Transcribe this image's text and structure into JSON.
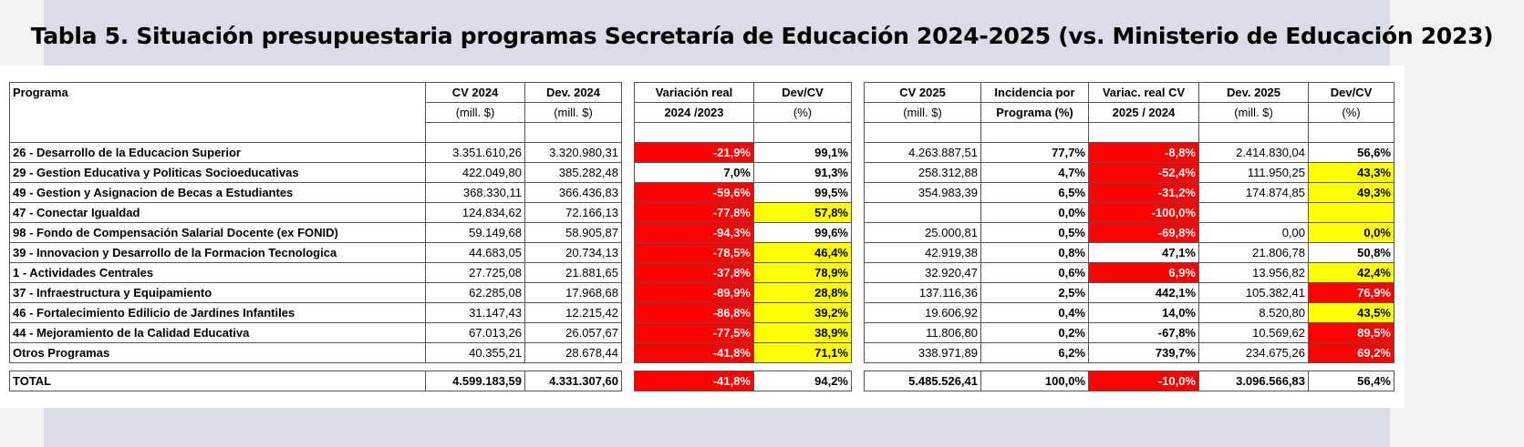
{
  "title": "Tabla 5. Situación presupuestaria programas Secretaría de Educación 2024-2025 (vs. Ministerio de Educación 2023)",
  "headers": {
    "programa": "Programa",
    "cv2024": [
      "CV 2024",
      "(mill. $)"
    ],
    "dev2024": [
      "Dev. 2024",
      "(mill. $)"
    ],
    "var2024": [
      "Variación real",
      "2024 /2023"
    ],
    "devcv2024": [
      "Dev/CV",
      "(%)"
    ],
    "cv2025": [
      "CV 2025",
      "(mill. $)"
    ],
    "incidencia": [
      "Incidencia por",
      "Programa (%)"
    ],
    "var2025": [
      "Variac. real CV",
      "2025 / 2024"
    ],
    "dev2025": [
      "Dev. 2025",
      "(mill. $)"
    ],
    "devcv2025": [
      "Dev/CV",
      "(%)"
    ]
  },
  "colors": {
    "red": "#ff0000",
    "yellow": "#ffff00"
  },
  "rows": [
    {
      "programa": "26 - Desarrollo de la Educacion Superior",
      "cv2024": "3.351.610,26",
      "dev2024": "3.320.980,31",
      "var2024": "-21,9%",
      "var2024_c": "r",
      "devcv2024": "99,1%",
      "devcv2024_c": "",
      "cv2025": "4.263.887,51",
      "incidencia": "77,7%",
      "var2025": "-8,8%",
      "var2025_c": "r",
      "dev2025": "2.414.830,04",
      "devcv2025": "56,6%",
      "devcv2025_c": ""
    },
    {
      "programa": "29 - Gestion Educativa y Politicas Socioeducativas",
      "cv2024": "422.049,80",
      "dev2024": "385.282,48",
      "var2024": "7,0%",
      "var2024_c": "",
      "devcv2024": "91,3%",
      "devcv2024_c": "",
      "cv2025": "258.312,88",
      "incidencia": "4,7%",
      "var2025": "-52,4%",
      "var2025_c": "r",
      "dev2025": "111.950,25",
      "devcv2025": "43,3%",
      "devcv2025_c": "y"
    },
    {
      "programa": "49 - Gestion y Asignacion de Becas a Estudiantes",
      "cv2024": "368.330,11",
      "dev2024": "366.436,83",
      "var2024": "-59,6%",
      "var2024_c": "r",
      "devcv2024": "99,5%",
      "devcv2024_c": "",
      "cv2025": "354.983,39",
      "incidencia": "6,5%",
      "var2025": "-31,2%",
      "var2025_c": "r",
      "dev2025": "174.874,85",
      "devcv2025": "49,3%",
      "devcv2025_c": "y"
    },
    {
      "programa": "47 - Conectar Igualdad",
      "cv2024": "124.834,62",
      "dev2024": "72.166,13",
      "var2024": "-77,8%",
      "var2024_c": "r",
      "devcv2024": "57,8%",
      "devcv2024_c": "y",
      "cv2025": "",
      "incidencia": "0,0%",
      "var2025": "-100,0%",
      "var2025_c": "r",
      "dev2025": "",
      "devcv2025": "",
      "devcv2025_c": "y"
    },
    {
      "programa": "98 - Fondo de Compensación Salarial Docente (ex FONID)",
      "cv2024": "59.149,68",
      "dev2024": "58.905,87",
      "var2024": "-94,3%",
      "var2024_c": "r",
      "devcv2024": "99,6%",
      "devcv2024_c": "",
      "cv2025": "25.000,81",
      "incidencia": "0,5%",
      "var2025": "-69,8%",
      "var2025_c": "r",
      "dev2025": "0,00",
      "devcv2025": "0,0%",
      "devcv2025_c": "y"
    },
    {
      "programa": "39 - Innovacion y Desarrollo de la Formacion Tecnologica",
      "cv2024": "44.683,05",
      "dev2024": "20.734,13",
      "var2024": "-78,5%",
      "var2024_c": "r",
      "devcv2024": "46,4%",
      "devcv2024_c": "y",
      "cv2025": "42.919,38",
      "incidencia": "0,8%",
      "var2025": "47,1%",
      "var2025_c": "",
      "dev2025": "21.806,78",
      "devcv2025": "50,8%",
      "devcv2025_c": ""
    },
    {
      "programa": "1 - Actividades Centrales",
      "cv2024": "27.725,08",
      "dev2024": "21.881,65",
      "var2024": "-37,8%",
      "var2024_c": "r",
      "devcv2024": "78,9%",
      "devcv2024_c": "y",
      "cv2025": "32.920,47",
      "incidencia": "0,6%",
      "var2025": "6,9%",
      "var2025_c": "r",
      "dev2025": "13.956,82",
      "devcv2025": "42,4%",
      "devcv2025_c": "y"
    },
    {
      "programa": "37 - Infraestructura y Equipamiento",
      "cv2024": "62.285,08",
      "dev2024": "17.968,68",
      "var2024": "-89,9%",
      "var2024_c": "r",
      "devcv2024": "28,8%",
      "devcv2024_c": "y",
      "cv2025": "137.116,36",
      "incidencia": "2,5%",
      "var2025": "442,1%",
      "var2025_c": "",
      "dev2025": "105.382,41",
      "devcv2025": "76,9%",
      "devcv2025_c": "r"
    },
    {
      "programa": "46 - Fortalecimiento Edilicio de Jardines Infantiles",
      "cv2024": "31.147,43",
      "dev2024": "12.215,42",
      "var2024": "-86,8%",
      "var2024_c": "r",
      "devcv2024": "39,2%",
      "devcv2024_c": "y",
      "cv2025": "19.606,92",
      "incidencia": "0,4%",
      "var2025": "14,0%",
      "var2025_c": "",
      "dev2025": "8.520,80",
      "devcv2025": "43,5%",
      "devcv2025_c": "y"
    },
    {
      "programa": "44 - Mejoramiento de la Calidad Educativa",
      "cv2024": "67.013,26",
      "dev2024": "26.057,67",
      "var2024": "-77,5%",
      "var2024_c": "r",
      "devcv2024": "38,9%",
      "devcv2024_c": "y",
      "cv2025": "11.806,80",
      "incidencia": "0,2%",
      "var2025": "-67,8%",
      "var2025_c": "",
      "dev2025": "10.569,62",
      "devcv2025": "89,5%",
      "devcv2025_c": "r"
    },
    {
      "programa": "Otros Programas",
      "cv2024": "40.355,21",
      "dev2024": "28.678,44",
      "var2024": "-41,8%",
      "var2024_c": "r",
      "devcv2024": "71,1%",
      "devcv2024_c": "y",
      "cv2025": "338.971,89",
      "incidencia": "6,2%",
      "var2025": "739,7%",
      "var2025_c": "",
      "dev2025": "234.675,26",
      "devcv2025": "69,2%",
      "devcv2025_c": "r"
    }
  ],
  "total": {
    "programa": "TOTAL",
    "cv2024": "4.599.183,59",
    "dev2024": "4.331.307,60",
    "var2024": "-41,8%",
    "var2024_c": "r",
    "devcv2024": "94,2%",
    "devcv2024_c": "",
    "cv2025": "5.485.526,41",
    "incidencia": "100,0%",
    "var2025": "-10,0%",
    "var2025_c": "r",
    "dev2025": "3.096.566,83",
    "devcv2025": "56,4%",
    "devcv2025_c": ""
  }
}
